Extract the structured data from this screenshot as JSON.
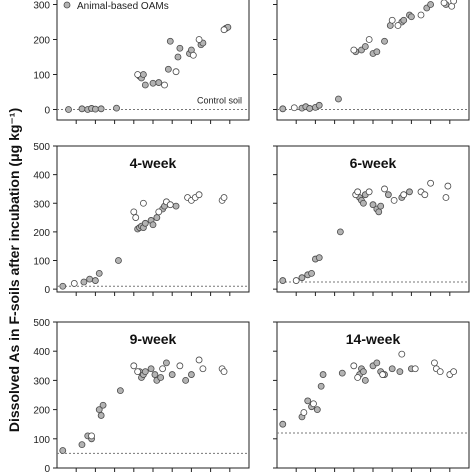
{
  "figure": {
    "ylabel": "Dissolved As in F-soils after incubation (μg kg⁻¹)"
  },
  "chart_data": [
    {
      "type": "scatter",
      "title": "",
      "legend": {
        "label": "Animal-based OAMs",
        "placement": "top-left"
      },
      "annotation": "Control soil",
      "ylim": [
        -30,
        370
      ],
      "xlim": [
        0,
        10
      ],
      "yticks": [
        0,
        100,
        200,
        300
      ],
      "ytick_labels": [
        "0",
        "100",
        "200",
        "300"
      ],
      "show_ytick_labels": true,
      "baseline": 0,
      "series": [
        {
          "name": "Animal-based OAMs",
          "fill": "#b3b3b3",
          "x": [
            0.6,
            1.3,
            1.6,
            1.8,
            2.0,
            2.3,
            3.1,
            4.3,
            4.4,
            4.5,
            4.6,
            5.0,
            5.3,
            5.8,
            5.9,
            6.3,
            6.4,
            6.9,
            7.0,
            7.5,
            7.6,
            8.8,
            8.9
          ],
          "y": [
            0,
            2,
            0,
            3,
            1,
            2,
            4,
            95,
            90,
            100,
            70,
            75,
            77,
            115,
            195,
            150,
            175,
            160,
            170,
            185,
            190,
            232,
            235
          ]
        },
        {
          "name": "",
          "fill": "#ffffff",
          "x": [
            4.2,
            5.6,
            6.2,
            7.1,
            7.4,
            8.7
          ],
          "y": [
            100,
            70,
            108,
            155,
            200,
            228
          ]
        }
      ]
    },
    {
      "type": "scatter",
      "title": "",
      "ylim": [
        -30,
        370
      ],
      "xlim": [
        0,
        10
      ],
      "yticks": [
        0,
        100,
        200,
        300
      ],
      "ytick_labels": [
        "0",
        "100",
        "200",
        "300"
      ],
      "show_ytick_labels": false,
      "baseline": 0,
      "series": [
        {
          "name": "",
          "fill": "#b3b3b3",
          "x": [
            0.3,
            1.3,
            1.5,
            1.7,
            2.0,
            2.2,
            3.2,
            4.1,
            4.4,
            4.6,
            5.0,
            5.2,
            5.6,
            5.9,
            6.5,
            6.6,
            6.9,
            7.0,
            7.8,
            8.0,
            8.8
          ],
          "y": [
            2,
            4,
            8,
            3,
            6,
            12,
            30,
            165,
            170,
            180,
            160,
            165,
            195,
            240,
            250,
            255,
            270,
            265,
            290,
            300,
            300
          ]
        },
        {
          "name": "",
          "fill": "#ffffff",
          "x": [
            0.9,
            4.0,
            4.8,
            6.0,
            6.3,
            7.5,
            8.7,
            9.1,
            9.2
          ],
          "y": [
            5,
            170,
            200,
            255,
            240,
            270,
            305,
            295,
            310
          ]
        }
      ]
    },
    {
      "type": "scatter",
      "title": "4-week",
      "ylim": [
        -10,
        500
      ],
      "xlim": [
        0,
        10
      ],
      "yticks": [
        0,
        100,
        200,
        300,
        400,
        500
      ],
      "ytick_labels": [
        "0",
        "100",
        "200",
        "300",
        "400",
        "500"
      ],
      "show_ytick_labels": true,
      "baseline": 10,
      "series": [
        {
          "name": "",
          "fill": "#b3b3b3",
          "x": [
            0.3,
            1.4,
            1.7,
            2.0,
            2.2,
            3.2,
            4.2,
            4.3,
            4.4,
            4.5,
            4.6,
            4.9,
            5.0,
            5.2,
            5.5,
            5.6,
            6.2
          ],
          "y": [
            10,
            25,
            35,
            30,
            55,
            100,
            210,
            215,
            220,
            215,
            230,
            240,
            225,
            250,
            280,
            290,
            290
          ]
        },
        {
          "name": "",
          "fill": "#ffffff",
          "x": [
            0.9,
            4.0,
            4.1,
            4.5,
            5.3,
            5.7,
            5.9,
            6.8,
            7.0,
            7.2,
            7.4,
            8.6,
            8.7
          ],
          "y": [
            20,
            270,
            250,
            300,
            270,
            305,
            295,
            320,
            310,
            320,
            330,
            310,
            320
          ]
        }
      ]
    },
    {
      "type": "scatter",
      "title": "6-week",
      "ylim": [
        -10,
        500
      ],
      "xlim": [
        0,
        10
      ],
      "yticks": [
        0,
        100,
        200,
        300,
        400,
        500
      ],
      "ytick_labels": [
        "0",
        "100",
        "200",
        "300",
        "400",
        "500"
      ],
      "show_ytick_labels": false,
      "baseline": 25,
      "series": [
        {
          "name": "",
          "fill": "#b3b3b3",
          "x": [
            0.3,
            1.3,
            1.6,
            1.8,
            2.0,
            2.2,
            3.3,
            4.3,
            4.4,
            4.5,
            4.6,
            5.0,
            5.2,
            5.3,
            5.4,
            5.8,
            6.5,
            6.9
          ],
          "y": [
            30,
            40,
            50,
            55,
            105,
            110,
            200,
            320,
            310,
            300,
            330,
            295,
            280,
            270,
            290,
            330,
            320,
            340
          ]
        },
        {
          "name": "",
          "fill": "#ffffff",
          "x": [
            1.0,
            4.1,
            4.2,
            4.8,
            5.6,
            6.1,
            6.6,
            7.5,
            7.7,
            8.0,
            8.8,
            8.9
          ],
          "y": [
            30,
            330,
            340,
            340,
            350,
            310,
            330,
            340,
            330,
            370,
            320,
            360
          ]
        }
      ]
    },
    {
      "type": "scatter",
      "title": "9-week",
      "ylim": [
        0,
        500
      ],
      "xlim": [
        0,
        10
      ],
      "yticks": [
        0,
        100,
        200,
        300,
        400,
        500
      ],
      "ytick_labels": [
        "0",
        "100",
        "200",
        "300",
        "400",
        "500"
      ],
      "show_ytick_labels": true,
      "baseline": 50,
      "series": [
        {
          "name": "",
          "fill": "#b3b3b3",
          "x": [
            0.3,
            1.3,
            1.6,
            1.8,
            2.2,
            2.3,
            2.4,
            3.3,
            4.3,
            4.4,
            4.5,
            4.6,
            4.9,
            5.1,
            5.2,
            5.4,
            5.7,
            6.0,
            6.7,
            7.0
          ],
          "y": [
            60,
            80,
            110,
            100,
            200,
            180,
            215,
            265,
            330,
            310,
            320,
            330,
            340,
            320,
            300,
            310,
            360,
            320,
            300,
            320
          ]
        },
        {
          "name": "",
          "fill": "#ffffff",
          "x": [
            1.8,
            4.0,
            4.2,
            5.5,
            6.4,
            7.4,
            7.6,
            8.6,
            8.7
          ],
          "y": [
            110,
            350,
            330,
            340,
            350,
            370,
            340,
            340,
            330
          ]
        }
      ]
    },
    {
      "type": "scatter",
      "title": "14-week",
      "ylim": [
        0,
        500
      ],
      "xlim": [
        0,
        10
      ],
      "yticks": [
        0,
        100,
        200,
        300,
        400,
        500
      ],
      "ytick_labels": [
        "0",
        "100",
        "200",
        "300",
        "400",
        "500"
      ],
      "show_ytick_labels": false,
      "baseline": 120,
      "series": [
        {
          "name": "",
          "fill": "#b3b3b3",
          "x": [
            0.3,
            1.3,
            1.6,
            1.8,
            2.1,
            2.3,
            2.4,
            3.4,
            4.3,
            4.4,
            4.5,
            4.6,
            5.0,
            5.2,
            5.4,
            5.6,
            6.0,
            6.4,
            7.0
          ],
          "y": [
            150,
            175,
            230,
            210,
            200,
            280,
            320,
            325,
            320,
            340,
            330,
            300,
            350,
            360,
            330,
            320,
            340,
            330,
            340
          ]
        },
        {
          "name": "",
          "fill": "#ffffff",
          "x": [
            1.4,
            1.9,
            4.0,
            4.2,
            5.5,
            6.5,
            7.2,
            8.2,
            8.3,
            8.5,
            9.0,
            9.2
          ],
          "y": [
            190,
            220,
            350,
            310,
            320,
            390,
            340,
            360,
            340,
            330,
            320,
            330
          ]
        }
      ]
    }
  ]
}
